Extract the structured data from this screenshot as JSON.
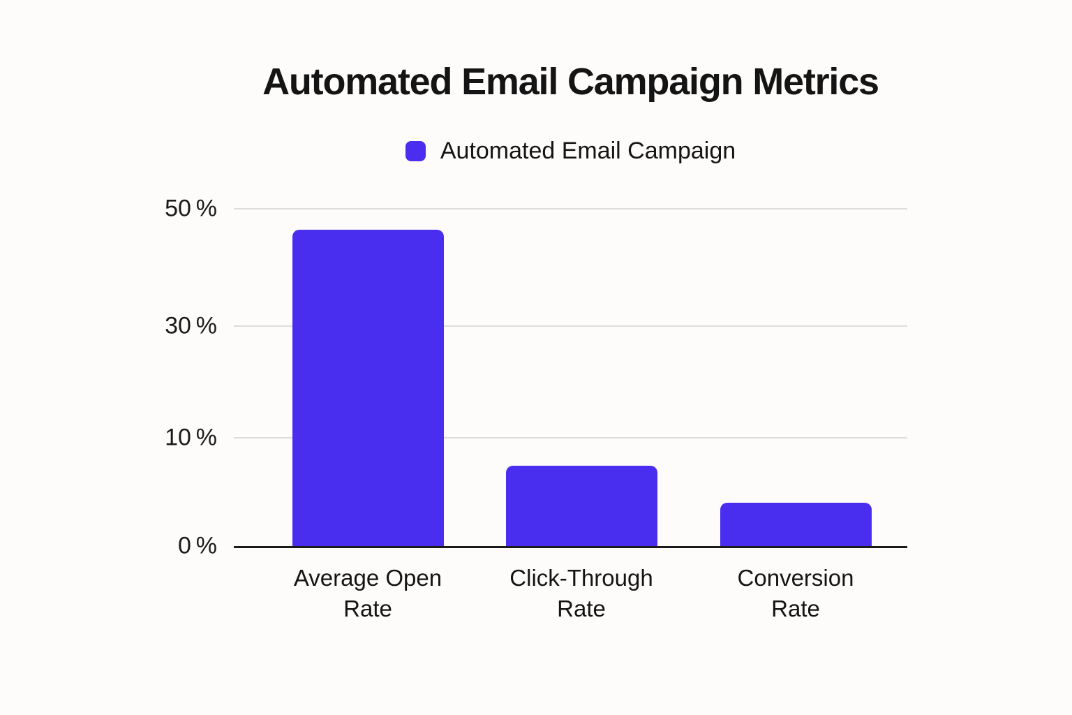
{
  "page": {
    "background_color": "#fdfcfa"
  },
  "chart_data": {
    "type": "bar",
    "title": "Automated Email Campaign Metrics",
    "legend": {
      "label": "Automated Email Campaign",
      "swatch_color": "#4a2ef0",
      "position": "top-center"
    },
    "categories": [
      "Average Open Rate",
      "Click-Through Rate",
      "Conversion Rate"
    ],
    "category_lines": [
      [
        "Average Open",
        "Rate"
      ],
      [
        "Click-Through",
        "Rate"
      ],
      [
        "Conversion",
        "Rate"
      ]
    ],
    "series": [
      {
        "name": "Automated Email Campaign",
        "values": [
          46.4,
          7.4,
          4.0
        ]
      }
    ],
    "values_unit": "%",
    "xlabel": "",
    "ylabel": "",
    "ylim": [
      0,
      50
    ],
    "grid": true,
    "y_axis": {
      "ticks": [
        {
          "value": 0,
          "label": "0 %",
          "frac": 0
        },
        {
          "value": 10,
          "label": "10 %",
          "frac": 0.321
        },
        {
          "value": 30,
          "label": "30 %",
          "frac": 0.652
        },
        {
          "value": 50,
          "label": "50 %",
          "frac": 1.0
        }
      ]
    },
    "colors": {
      "bar": "#4a2ef0",
      "axis_line": "#1b1b1b",
      "gridline": "#dcdcdc",
      "text": "#141414"
    }
  }
}
